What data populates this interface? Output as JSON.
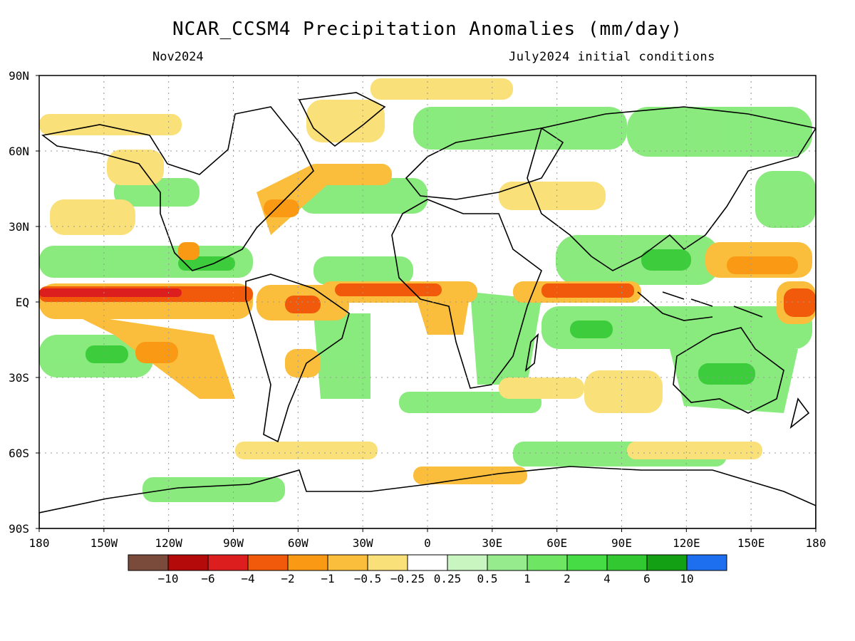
{
  "title": "NCAR_CCSM4 Precipitation Anomalies (mm/day)",
  "valid_month": "Nov2024",
  "initial_conditions": "July2024 initial conditions",
  "lat_labels": [
    "90N",
    "60N",
    "30N",
    "EQ",
    "30S",
    "60S",
    "90S"
  ],
  "lon_labels": [
    "180",
    "150W",
    "120W",
    "90W",
    "60W",
    "30W",
    "0",
    "30E",
    "60E",
    "90E",
    "120E",
    "150E",
    "180"
  ],
  "colorbar": {
    "labels": [
      "−10",
      "−6",
      "−4",
      "−2",
      "−1",
      "−0.5",
      "−0.25",
      "0.25",
      "0.5",
      "1",
      "2",
      "4",
      "6",
      "10"
    ],
    "colors": [
      "#7a4a3a",
      "#b40a0a",
      "#dc1e1e",
      "#f05a0a",
      "#fa9a14",
      "#fabe3c",
      "#fae078",
      "#ffffff",
      "#c8f5c0",
      "#96eb8c",
      "#6ee664",
      "#46dc46",
      "#32c832",
      "#14a014",
      "#1e6ef0"
    ]
  }
}
